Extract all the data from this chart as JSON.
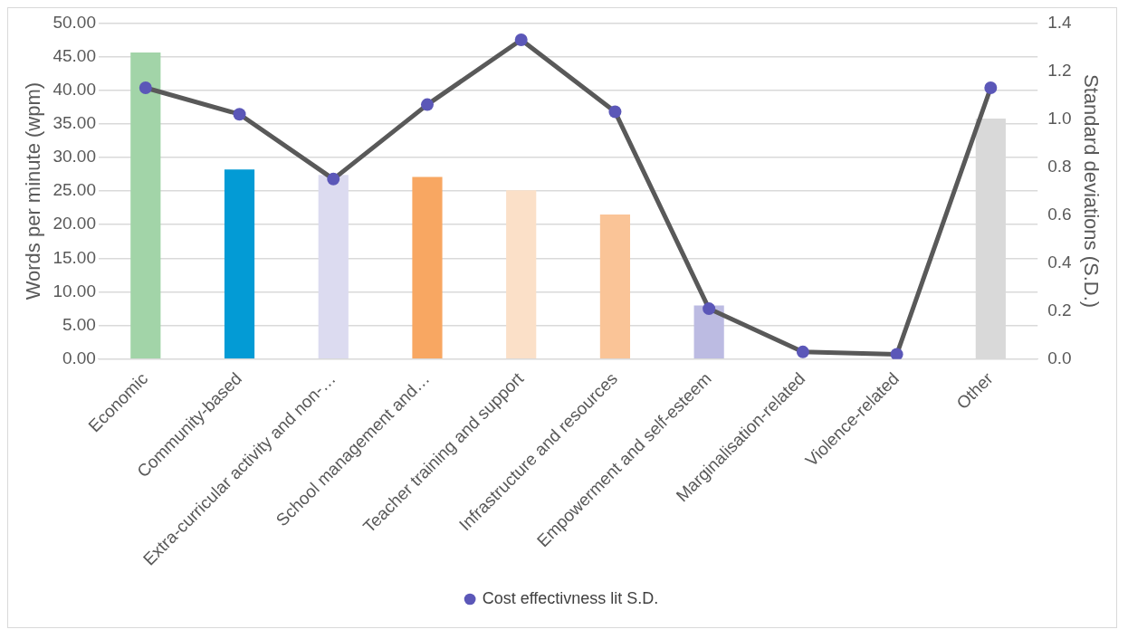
{
  "chart_data": {
    "type": "bar",
    "categories": [
      "Economic",
      "Community-based",
      "Extra-curricular activity and non-…",
      "School management and…",
      "Teacher training and support",
      "Infrastructure and resources",
      "Empowerment and self-esteem",
      "Marginalisation-related",
      "Violence-related",
      "Other"
    ],
    "series": [
      {
        "colors": [
          "#a2d4a8",
          "#039bd5",
          "#dcdbf0",
          "#f8a762",
          "#fbe0c8",
          "#fac497",
          "#bcbbe2",
          "#bcbbe2",
          "#bcbbe2",
          "#d9d9d9"
        ],
        "values": [
          45.6,
          28.2,
          27.4,
          27.1,
          25.1,
          21.5,
          8.0,
          0,
          0,
          35.8
        ]
      },
      {
        "type": "line",
        "axis": "y2",
        "name": "Cost effectivness lit S.D.",
        "color": "#595959",
        "marker": "circle",
        "values": [
          1.13,
          1.02,
          0.75,
          1.06,
          1.33,
          1.03,
          0.21,
          0.03,
          0.02,
          1.13
        ]
      }
    ],
    "ylabel": "Words per minute (wpm)",
    "y2label": "Standard deviations (S.D.)",
    "ylim": [
      0,
      50
    ],
    "yticks": [
      {
        "value": 0,
        "label": "0.00"
      },
      {
        "value": 5,
        "label": "5.00"
      },
      {
        "value": 10,
        "label": "10.00"
      },
      {
        "value": 15,
        "label": "15.00"
      },
      {
        "value": 20,
        "label": "20.00"
      },
      {
        "value": 25,
        "label": "25.00"
      },
      {
        "value": 30,
        "label": "30.00"
      },
      {
        "value": 35,
        "label": "35.00"
      },
      {
        "value": 40,
        "label": "40.00"
      },
      {
        "value": 45,
        "label": "45.00"
      },
      {
        "value": 50,
        "label": "50.00"
      }
    ],
    "y2lim": [
      0,
      1.4
    ],
    "y2ticks": [
      {
        "value": 0,
        "label": "0.0"
      },
      {
        "value": 0.2,
        "label": "0.2"
      },
      {
        "value": 0.4,
        "label": "0.4"
      },
      {
        "value": 0.6,
        "label": "0.6"
      },
      {
        "value": 0.8,
        "label": "0.8"
      },
      {
        "value": 1,
        "label": "1.0"
      },
      {
        "value": 1.2,
        "label": "1.2"
      },
      {
        "value": 1.4,
        "label": "1.4"
      }
    ],
    "grid": "y",
    "legend": "bottom"
  }
}
